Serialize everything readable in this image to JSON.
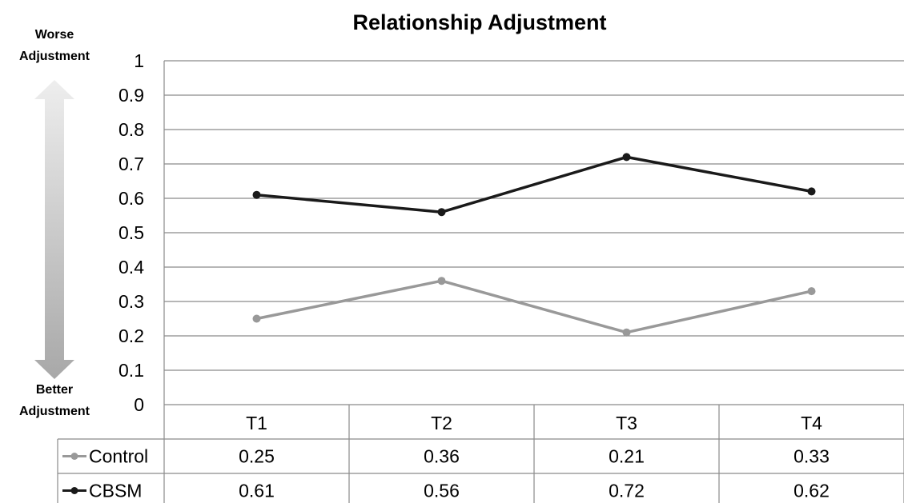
{
  "chart_data": {
    "type": "line",
    "title": "Relationship Adjustment",
    "categories": [
      "T1",
      "T2",
      "T3",
      "T4"
    ],
    "series": [
      {
        "name": "Control",
        "values": [
          0.25,
          0.36,
          0.21,
          0.33
        ],
        "color": "#999999"
      },
      {
        "name": "CBSM",
        "values": [
          0.61,
          0.56,
          0.72,
          0.62
        ],
        "color": "#1a1a1a"
      }
    ],
    "ylim": [
      0,
      1
    ],
    "yticks": [
      "0",
      "0.1",
      "0.2",
      "0.3",
      "0.4",
      "0.5",
      "0.6",
      "0.7",
      "0.8",
      "0.9",
      "1"
    ],
    "grid": true,
    "legend": "data table below chart",
    "annotations": {
      "top_label_line1": "Worse",
      "top_label_line2": "Adjustment",
      "bottom_label_line1": "Better",
      "bottom_label_line2": "Adjustment"
    }
  },
  "colors": {
    "grid": "#8a8a8a",
    "arrow_top": "#eeeeee",
    "arrow_bottom": "#a8a8a8"
  }
}
